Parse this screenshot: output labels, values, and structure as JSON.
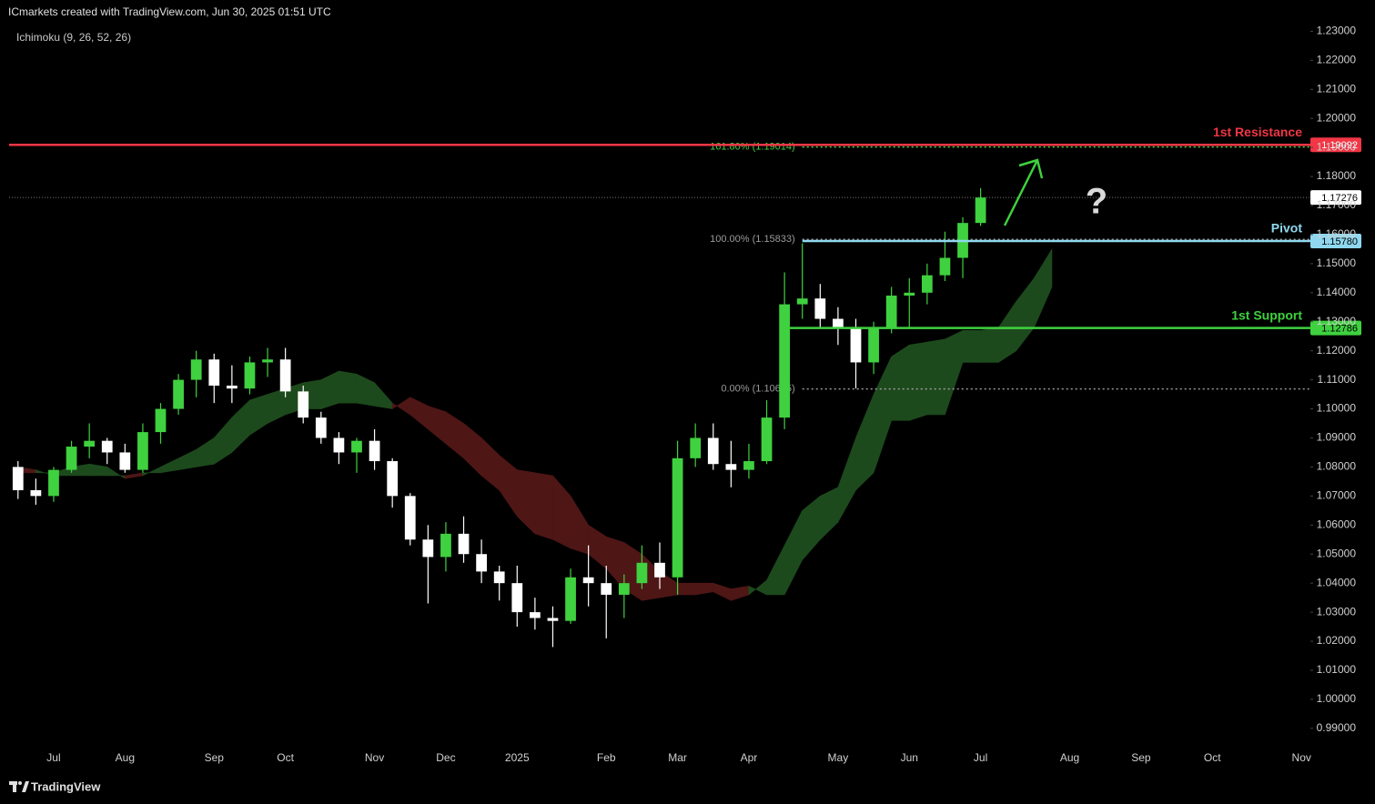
{
  "chart_data": {
    "type": "candlestick",
    "title": "ICmarkets created with TradingView.com, Jun 30, 2025 01:51 UTC",
    "indicator_label": "Ichimoku (9, 26, 52, 26)",
    "footer": "TradingView",
    "annotation": "?",
    "categories": [
      null,
      null,
      "Jul",
      null,
      null,
      null,
      "Aug",
      null,
      null,
      null,
      null,
      "Sep",
      null,
      null,
      null,
      "Oct",
      null,
      null,
      null,
      null,
      "Nov",
      null,
      null,
      null,
      "Dec",
      null,
      null,
      null,
      "2025",
      null,
      null,
      null,
      null,
      "Feb",
      null,
      null,
      null,
      "Mar",
      null,
      null,
      null,
      "Apr",
      null,
      null,
      null,
      null,
      "May",
      null,
      null,
      null,
      "Jun",
      null,
      null,
      null,
      "Jul",
      null,
      null,
      null,
      null,
      "Aug",
      null,
      null,
      null,
      "Sep",
      null,
      null,
      null,
      "Oct",
      null,
      null,
      null,
      null,
      "Nov"
    ],
    "up_color": "#3fd13f",
    "down_color": "#ffffff",
    "open": [
      1.08,
      1.072,
      1.07,
      1.079,
      1.087,
      1.089,
      1.085,
      1.079,
      1.092,
      1.1,
      1.11,
      1.117,
      1.108,
      1.107,
      1.116,
      1.117,
      1.106,
      1.097,
      1.09,
      1.085,
      1.089,
      1.082,
      1.07,
      1.055,
      1.049,
      1.057,
      1.05,
      1.044,
      1.04,
      1.03,
      1.028,
      1.027,
      1.042,
      1.04,
      1.036,
      1.04,
      1.047,
      1.042,
      1.083,
      1.09,
      1.081,
      1.079,
      1.082,
      1.097,
      1.136,
      1.138,
      1.131,
      1.128,
      1.116,
      1.128,
      1.139,
      1.14,
      1.146,
      1.152,
      1.164,
      null,
      null,
      null,
      null,
      null,
      null,
      null,
      null,
      null,
      null,
      null,
      null,
      null,
      null,
      null,
      null,
      null,
      null
    ],
    "high": [
      1.082,
      1.076,
      1.08,
      1.089,
      1.095,
      1.09,
      1.088,
      1.095,
      1.102,
      1.112,
      1.12,
      1.119,
      1.115,
      1.118,
      1.121,
      1.121,
      1.108,
      1.099,
      1.092,
      1.09,
      1.093,
      1.083,
      1.071,
      1.06,
      1.061,
      1.063,
      1.055,
      1.046,
      1.046,
      1.035,
      1.032,
      1.045,
      1.053,
      1.046,
      1.043,
      1.053,
      1.054,
      1.089,
      1.095,
      1.095,
      1.089,
      1.088,
      1.103,
      1.147,
      1.157,
      1.143,
      1.135,
      1.131,
      1.13,
      1.142,
      1.145,
      1.15,
      1.161,
      1.166,
      1.176,
      null,
      null,
      null,
      null,
      null,
      null,
      null,
      null,
      null,
      null,
      null,
      null,
      null,
      null,
      null,
      null,
      null,
      null
    ],
    "low": [
      1.069,
      1.067,
      1.068,
      1.078,
      1.083,
      1.081,
      1.078,
      1.078,
      1.088,
      1.098,
      1.104,
      1.102,
      1.102,
      1.105,
      1.111,
      1.104,
      1.095,
      1.088,
      1.081,
      1.078,
      1.079,
      1.066,
      1.053,
      1.033,
      1.044,
      1.047,
      1.04,
      1.034,
      1.025,
      1.024,
      1.018,
      1.026,
      1.032,
      1.021,
      1.028,
      1.038,
      1.038,
      1.036,
      1.08,
      1.079,
      1.073,
      1.076,
      1.081,
      1.093,
      1.131,
      1.128,
      1.122,
      1.107,
      1.112,
      1.126,
      1.128,
      1.136,
      1.144,
      1.145,
      1.163,
      null,
      null,
      null,
      null,
      null,
      null,
      null,
      null,
      null,
      null,
      null,
      null,
      null,
      null,
      null,
      null,
      null,
      null
    ],
    "close": [
      1.072,
      1.07,
      1.079,
      1.087,
      1.089,
      1.085,
      1.079,
      1.092,
      1.1,
      1.11,
      1.117,
      1.108,
      1.107,
      1.116,
      1.117,
      1.106,
      1.097,
      1.09,
      1.085,
      1.089,
      1.082,
      1.07,
      1.055,
      1.049,
      1.057,
      1.05,
      1.044,
      1.04,
      1.03,
      1.028,
      1.027,
      1.042,
      1.04,
      1.036,
      1.04,
      1.047,
      1.042,
      1.083,
      1.09,
      1.081,
      1.079,
      1.082,
      1.097,
      1.136,
      1.138,
      1.131,
      1.128,
      1.116,
      1.128,
      1.139,
      1.14,
      1.146,
      1.152,
      1.164,
      1.17276,
      null,
      null,
      null,
      null,
      null,
      null,
      null,
      null,
      null,
      null,
      null,
      null,
      null,
      null,
      null,
      null,
      null,
      null
    ],
    "cloud": {
      "up_color": "#1d4a1d",
      "down_color": "#4f1616",
      "span_a": [
        1.078,
        1.078,
        1.078,
        1.08,
        1.081,
        1.08,
        1.076,
        1.077,
        1.08,
        1.083,
        1.086,
        1.09,
        1.097,
        1.103,
        1.105,
        1.107,
        1.109,
        1.11,
        1.113,
        1.112,
        1.109,
        1.102,
        1.098,
        1.093,
        1.088,
        1.083,
        1.077,
        1.072,
        1.063,
        1.057,
        1.055,
        1.052,
        1.05,
        1.045,
        1.038,
        1.034,
        1.035,
        1.036,
        1.036,
        1.037,
        1.034,
        1.036,
        1.041,
        1.053,
        1.065,
        1.07,
        1.073,
        1.09,
        1.105,
        1.118,
        1.122,
        1.123,
        1.124,
        1.127,
        1.127,
        1.128,
        1.137,
        1.145,
        1.155,
        null,
        null,
        null,
        null,
        null,
        null,
        null,
        null,
        null,
        null,
        null,
        null,
        null,
        null
      ],
      "span_b": [
        1.08,
        1.079,
        1.077,
        1.077,
        1.077,
        1.077,
        1.077,
        1.078,
        1.078,
        1.079,
        1.08,
        1.081,
        1.085,
        1.091,
        1.095,
        1.098,
        1.1,
        1.1,
        1.102,
        1.102,
        1.101,
        1.1,
        1.104,
        1.101,
        1.099,
        1.095,
        1.09,
        1.084,
        1.079,
        1.078,
        1.077,
        1.07,
        1.06,
        1.056,
        1.054,
        1.05,
        1.044,
        1.04,
        1.04,
        1.04,
        1.038,
        1.039,
        1.036,
        1.036,
        1.048,
        1.055,
        1.061,
        1.072,
        1.078,
        1.096,
        1.096,
        1.098,
        1.098,
        1.116,
        1.116,
        1.116,
        1.12,
        1.128,
        1.142,
        null,
        null,
        null,
        null,
        null,
        null,
        null,
        null,
        null,
        null,
        null,
        null,
        null,
        null
      ]
    },
    "ylim": [
      0.984,
      1.232
    ],
    "yticks": [
      {
        "value": 1.23,
        "label": "1.23000"
      },
      {
        "value": 1.22,
        "label": "1.22000"
      },
      {
        "value": 1.21,
        "label": "1.21000"
      },
      {
        "value": 1.2,
        "label": "1.20000"
      },
      {
        "value": 1.19,
        "label": "1.19000"
      },
      {
        "value": 1.18,
        "label": "1.18000"
      },
      {
        "value": 1.17,
        "label": "1.17000"
      },
      {
        "value": 1.16,
        "label": "1.16000"
      },
      {
        "value": 1.15,
        "label": "1.15000"
      },
      {
        "value": 1.14,
        "label": "1.14000"
      },
      {
        "value": 1.13,
        "label": "1.13000"
      },
      {
        "value": 1.12,
        "label": "1.12000"
      },
      {
        "value": 1.11,
        "label": "1.11000"
      },
      {
        "value": 1.1,
        "label": "1.10000"
      },
      {
        "value": 1.09,
        "label": "1.09000"
      },
      {
        "value": 1.08,
        "label": "1.08000"
      },
      {
        "value": 1.07,
        "label": "1.07000"
      },
      {
        "value": 1.06,
        "label": "1.06000"
      },
      {
        "value": 1.05,
        "label": "1.05000"
      },
      {
        "value": 1.04,
        "label": "1.04000"
      },
      {
        "value": 1.03,
        "label": "1.03000"
      },
      {
        "value": 1.02,
        "label": "1.02000"
      },
      {
        "value": 1.01,
        "label": "1.01000"
      },
      {
        "value": 1.0,
        "label": "1.00000"
      },
      {
        "value": 0.99,
        "label": "0.99000"
      }
    ],
    "levels": [
      {
        "name": "1st Resistance",
        "value": 1.19092,
        "color": "#f23645",
        "text_color": "#ffffff",
        "full_width": true
      },
      {
        "name": "Pivot",
        "value": 1.1578,
        "value_label": "1.15780",
        "color": "#8fd8ef",
        "text_color": "#000000",
        "full_width": false
      },
      {
        "name": "1st Support",
        "value": 1.12786,
        "color": "#3fd13f",
        "text_color": "#000000",
        "full_width": false
      }
    ],
    "fib_levels": [
      {
        "value": 1.19014,
        "label": "161.80% (1.19014)",
        "color": "#3fd13f"
      },
      {
        "value": 1.15833,
        "label": "100.00% (1.15833)",
        "color": "#9a9a9a"
      },
      {
        "value": 1.10685,
        "label": "0.00% (1.10685)",
        "color": "#9a9a9a"
      }
    ],
    "last_price": 1.17276
  }
}
